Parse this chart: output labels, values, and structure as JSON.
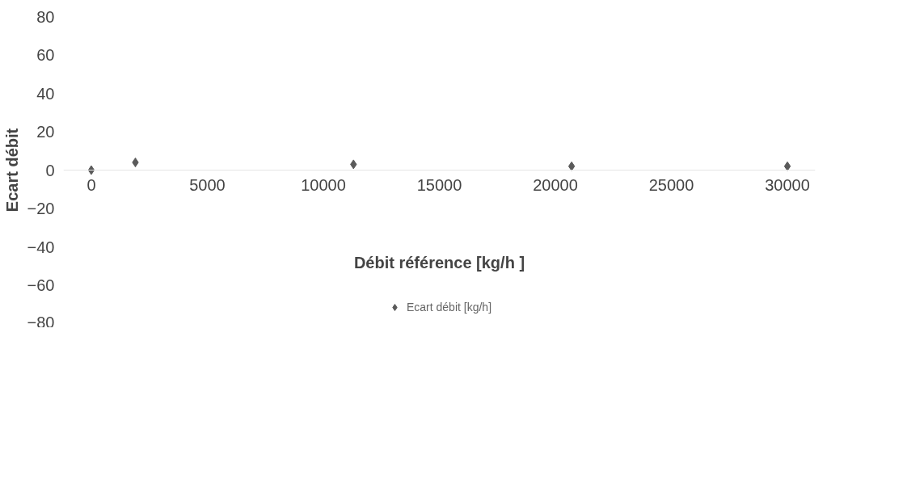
{
  "chart_data": {
    "type": "scatter",
    "xlabel": "Débit référence [kg/h ]",
    "ylabel": "Ecart débit",
    "x": [
      0,
      1900,
      11300,
      20700,
      30000
    ],
    "series": [
      {
        "name": "Ecart débit [kg/h]",
        "color": "#5a5a5a",
        "values": [
          0,
          4,
          3,
          2,
          2
        ]
      }
    ],
    "xlim": [
      -1200,
      31200
    ],
    "ylim": [
      -80,
      80
    ],
    "xticks": [
      0,
      5000,
      10000,
      15000,
      20000,
      25000,
      30000
    ],
    "yticks": [
      -80,
      -60,
      -40,
      -20,
      0,
      20,
      40,
      60,
      80
    ],
    "marker": "diamond",
    "grid": false,
    "legend": "bottom"
  }
}
